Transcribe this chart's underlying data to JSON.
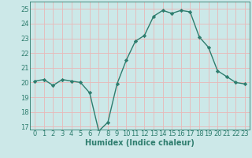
{
  "x": [
    0,
    1,
    2,
    3,
    4,
    5,
    6,
    7,
    8,
    9,
    10,
    11,
    12,
    13,
    14,
    15,
    16,
    17,
    18,
    19,
    20,
    21,
    22,
    23
  ],
  "y": [
    20.1,
    20.2,
    19.8,
    20.2,
    20.1,
    20.0,
    19.3,
    16.7,
    17.3,
    19.9,
    21.5,
    22.8,
    23.2,
    24.5,
    24.9,
    24.7,
    24.9,
    24.8,
    23.1,
    22.4,
    20.8,
    20.4,
    20.0,
    19.9
  ],
  "line_color": "#2e7d6e",
  "marker": "D",
  "marker_size": 2.2,
  "bg_color": "#cce8e8",
  "grid_color": "#e8b8b8",
  "xlabel": "Humidex (Indice chaleur)",
  "xlim": [
    -0.5,
    23.5
  ],
  "ylim": [
    16.8,
    25.5
  ],
  "yticks": [
    17,
    18,
    19,
    20,
    21,
    22,
    23,
    24,
    25
  ],
  "xticks": [
    0,
    1,
    2,
    3,
    4,
    5,
    6,
    7,
    8,
    9,
    10,
    11,
    12,
    13,
    14,
    15,
    16,
    17,
    18,
    19,
    20,
    21,
    22,
    23
  ],
  "tick_fontsize": 6,
  "xlabel_fontsize": 7
}
